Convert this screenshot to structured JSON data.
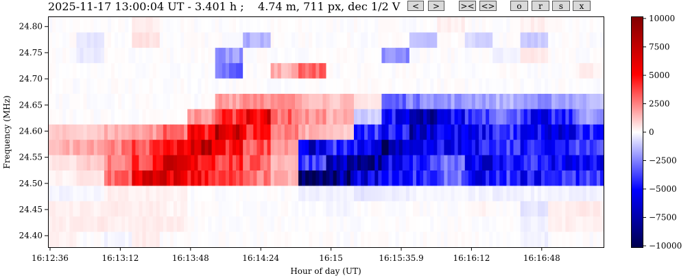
{
  "header": {
    "title": "2025-11-17 13:00:04 UT - 3.401 h ;    4.74 m, 711 px, dec 1/2 V",
    "buttons": {
      "prev": "<",
      "next": ">",
      "zoom_in": "><",
      "zoom_out": "<>",
      "o": "o",
      "r": "r",
      "s": "s",
      "x": "x"
    }
  },
  "chart_data": {
    "type": "heatmap",
    "xlabel": "Hour of day (UT)",
    "ylabel": "Frequency (MHz)",
    "x_ticks": [
      "16:12:36",
      "16:13:12",
      "16:13:48",
      "16:14:24",
      "16:15",
      "16:15:35.9",
      "16:16:12",
      "16:16:48"
    ],
    "y_ticks": [
      "24.80",
      "24.75",
      "24.70",
      "24.65",
      "24.60",
      "24.55",
      "24.50",
      "24.45",
      "24.40"
    ],
    "y_tick_values": [
      24.8,
      24.75,
      24.7,
      24.65,
      24.6,
      24.55,
      24.5,
      24.45,
      24.4
    ],
    "ylim": [
      24.378,
      24.818
    ],
    "colorbar": {
      "colormap": "seismic",
      "range": [
        -10000,
        10000
      ],
      "ticks": [
        "10000",
        "7500",
        "5000",
        "2500",
        "0",
        "−2500",
        "−5000",
        "−7500",
        "−10000"
      ],
      "tick_values": [
        10000,
        7500,
        5000,
        2500,
        0,
        -2500,
        -5000,
        -7500,
        -10000
      ]
    },
    "time_bins": 20,
    "freq_rows_top_to_bottom": [
      [
        0,
        0,
        0,
        300,
        0,
        0,
        0,
        0,
        0,
        0,
        0,
        0,
        0,
        0,
        300,
        0,
        0,
        300,
        0,
        0
      ],
      [
        0,
        -500,
        0,
        600,
        0,
        0,
        0,
        -1500,
        0,
        0,
        0,
        0,
        0,
        -1200,
        0,
        -800,
        0,
        -1000,
        0,
        0
      ],
      [
        0,
        -400,
        0,
        0,
        0,
        0,
        -2000,
        0,
        0,
        0,
        0,
        0,
        -2500,
        0,
        0,
        0,
        -300,
        400,
        0,
        0
      ],
      [
        0,
        0,
        0,
        0,
        0,
        0,
        -3000,
        0,
        1500,
        3000,
        0,
        0,
        0,
        0,
        0,
        0,
        0,
        0,
        0,
        300
      ],
      [
        0,
        0,
        0,
        0,
        0,
        0,
        0,
        0,
        0,
        0,
        0,
        0,
        0,
        0,
        0,
        0,
        0,
        0,
        0,
        0
      ],
      [
        0,
        0,
        0,
        0,
        0,
        0,
        2000,
        2500,
        2000,
        1500,
        1200,
        500,
        -3000,
        -2500,
        -2000,
        -2000,
        -1500,
        -2000,
        -2000,
        -1500
      ],
      [
        0,
        0,
        0,
        0,
        0,
        2000,
        4000,
        6000,
        3000,
        2000,
        1500,
        -1000,
        -5000,
        -7000,
        -5000,
        -4000,
        -3000,
        -5000,
        -4000,
        -2000
      ],
      [
        1000,
        1000,
        1500,
        2000,
        3000,
        5000,
        7000,
        4000,
        2500,
        1500,
        1000,
        -4000,
        -5000,
        -7000,
        -5000,
        -5000,
        -4000,
        -5000,
        -6000,
        -4000
      ],
      [
        1500,
        2000,
        2500,
        3500,
        5000,
        7000,
        5000,
        3500,
        2000,
        -6000,
        -4000,
        -5000,
        -8000,
        -5000,
        -5000,
        -5000,
        -4000,
        -5000,
        -5000,
        -4000
      ],
      [
        500,
        1000,
        2500,
        4000,
        6000,
        5000,
        4000,
        3000,
        1500,
        -4000,
        -7000,
        -8000,
        -5000,
        -4000,
        -3000,
        -6000,
        -5000,
        -4000,
        -5000,
        -5000
      ],
      [
        200,
        500,
        3000,
        6000,
        6000,
        5000,
        3500,
        2500,
        1500,
        -9000,
        -8000,
        -6000,
        -5000,
        -4000,
        -3000,
        -5000,
        -4000,
        -5000,
        -4000,
        -4000
      ],
      [
        -200,
        -200,
        300,
        300,
        200,
        0,
        0,
        0,
        0,
        -300,
        -300,
        -500,
        -300,
        -200,
        -200,
        -200,
        -300,
        -200,
        -200,
        -300
      ],
      [
        300,
        300,
        400,
        300,
        200,
        0,
        0,
        0,
        0,
        0,
        -200,
        0,
        0,
        0,
        0,
        200,
        0,
        -500,
        300,
        400
      ],
      [
        300,
        400,
        300,
        400,
        300,
        0,
        0,
        0,
        0,
        0,
        0,
        0,
        0,
        0,
        0,
        0,
        0,
        -300,
        300,
        300
      ],
      [
        300,
        0,
        -200,
        400,
        0,
        0,
        0,
        0,
        0,
        0,
        0,
        0,
        0,
        0,
        0,
        0,
        0,
        -300,
        0,
        0
      ]
    ]
  }
}
